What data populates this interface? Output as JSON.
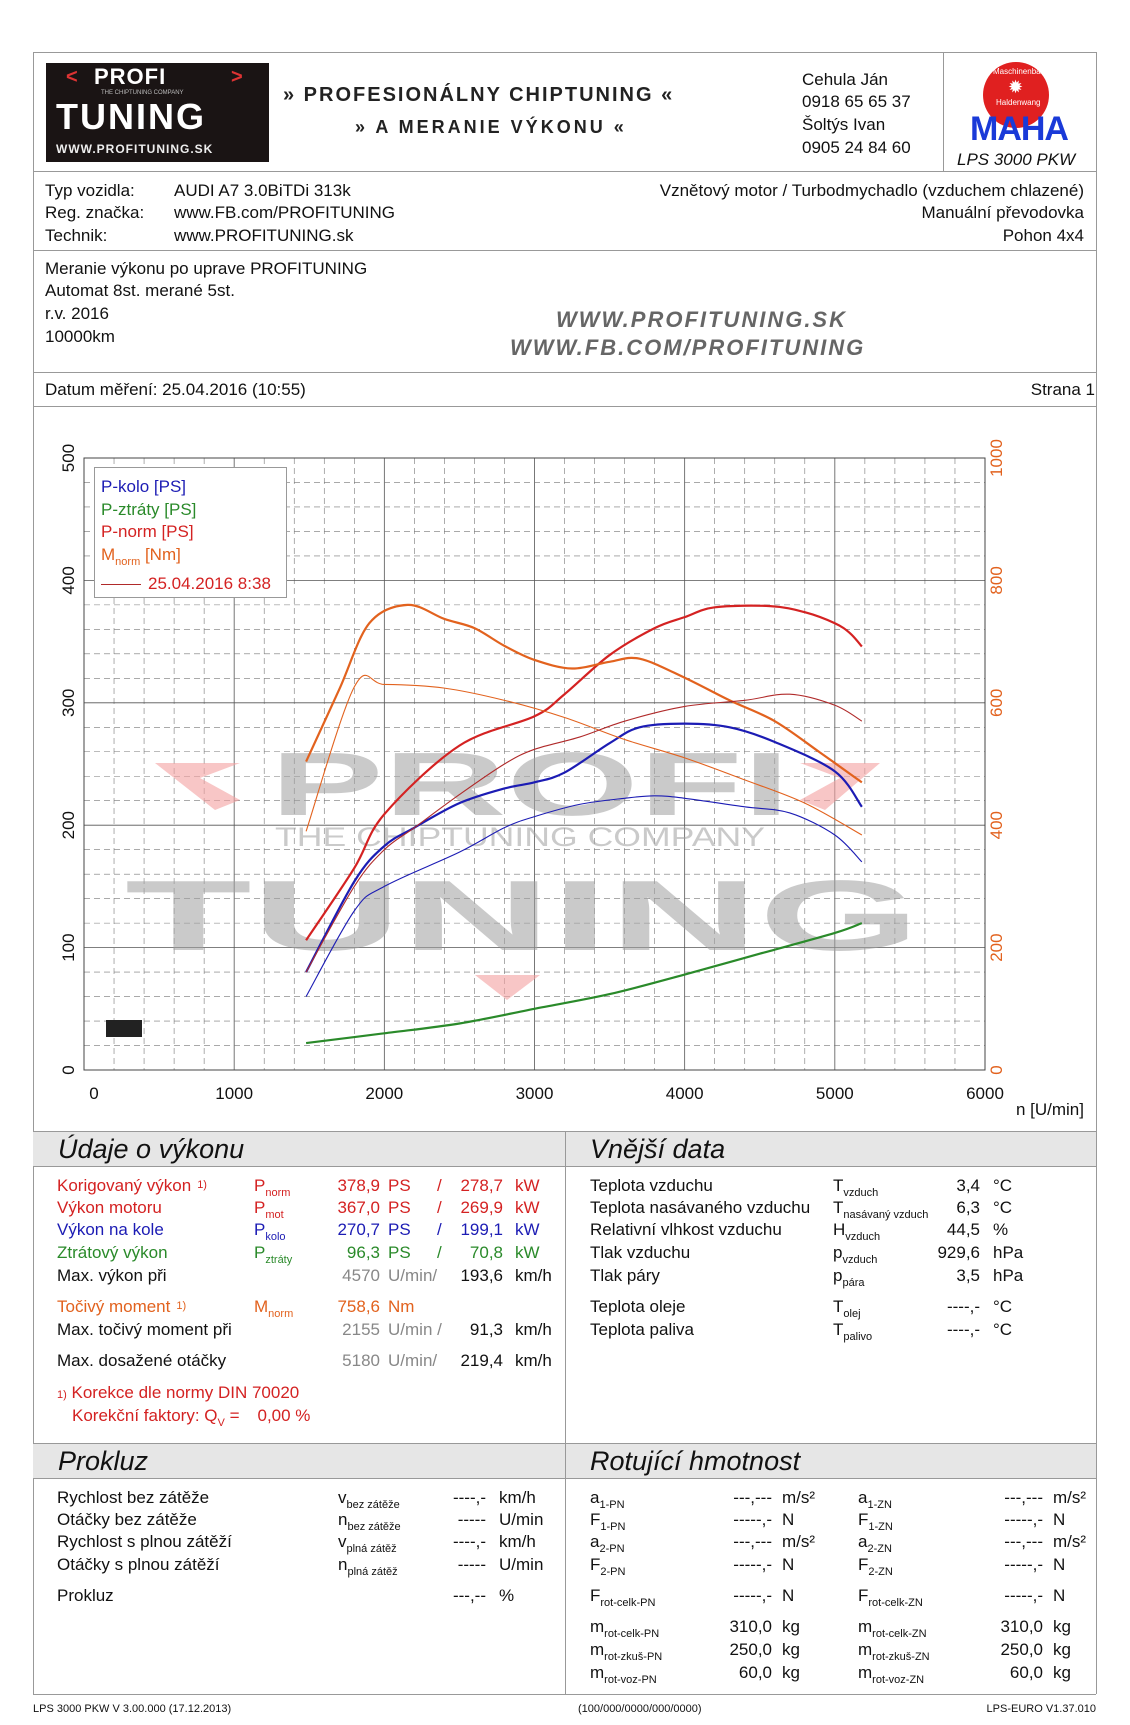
{
  "header": {
    "logo_text": [
      "PROFI",
      "TUNING",
      "THE CHIPTUNING COMPANY",
      "WWW.PROFITUNING.SK"
    ],
    "banner_line1": "» PROFESIONÁLNY CHIPTUNING «",
    "banner_line2": "» A MERANIE VÝKONU «",
    "contacts": [
      "Cehula Ján",
      "0918 65 65 37",
      "Šoltýs Ivan",
      "0905 24 84 60"
    ],
    "maha_logo_text": [
      "Maschinenbau",
      "Haldenwang",
      "MAHA"
    ],
    "device": "LPS 3000 PKW"
  },
  "vehicle": {
    "rows": [
      {
        "label": "Typ vozidla:",
        "value": "AUDI A7 3.0BiTDi 313k",
        "right": "Vznětový motor / Turbodmychadlo (vzduchem chlazené)"
      },
      {
        "label": "Reg. značka:",
        "value": "www.FB.com/PROFITUNING",
        "right": "Manuální převodovka"
      },
      {
        "label": "Technik:",
        "value": "www.PROFITUNING.sk",
        "right": "Pohon 4x4"
      }
    ]
  },
  "notes": {
    "lines": [
      "Meranie výkonu po uprave PROFITUNING",
      "Automat 8st. merané 5st.",
      "r.v. 2016",
      "10000km"
    ],
    "urls": [
      "WWW.PROFITUNING.SK",
      "WWW.FB.COM/PROFITUNING"
    ]
  },
  "date_row": {
    "date": "Datum měření: 25.04.2016 (10:55)",
    "page": "Strana 1"
  },
  "colors": {
    "red": "#d42222",
    "blue": "#1c1cb4",
    "green": "#2a8a2a",
    "orange": "#e2621e",
    "darkred": "#b02a2a",
    "gray": "#888888"
  },
  "chart_data": {
    "type": "line",
    "xlabel": "n [U/min]",
    "xlim": [
      0,
      6000
    ],
    "xticks": [
      "0",
      "1000",
      "2000",
      "3000",
      "4000",
      "5000",
      "6000"
    ],
    "ylim_left": [
      0,
      500
    ],
    "yticks_left": [
      "0",
      "100",
      "200",
      "300",
      "400",
      "500"
    ],
    "ylim_right": [
      0,
      1000
    ],
    "yticks_right": [
      "0",
      "200",
      "400",
      "600",
      "800",
      "1000"
    ],
    "grid": true,
    "legend_position": "top-left",
    "legend": [
      {
        "label": "P-kolo [PS]",
        "color": "blue"
      },
      {
        "label": "P-ztráty [PS]",
        "color": "green"
      },
      {
        "label": "P-norm [PS]",
        "color": "red"
      },
      {
        "label": "M",
        "sub": "norm",
        "suffix": " [Nm]",
        "color": "orange"
      },
      {
        "label": "25.04.2016 8:38",
        "color": "red",
        "line": true
      }
    ],
    "watermark": [
      "PROFI",
      "THE CHIPTUNING COMPANY",
      "TUNING"
    ],
    "series": [
      {
        "name": "P-norm [PS]",
        "color": "red",
        "width": 2.2,
        "axis": "left",
        "x": [
          1479,
          1800,
          2000,
          2500,
          3000,
          3200,
          3500,
          3800,
          4000,
          4200,
          4570,
          4800,
          5000,
          5100,
          5180
        ],
        "y": [
          106,
          165,
          209,
          265,
          289,
          307,
          339,
          361,
          370,
          378,
          379,
          374,
          365,
          357,
          346
        ]
      },
      {
        "name": "P-kolo [PS]",
        "color": "blue",
        "width": 2.2,
        "axis": "left",
        "x": [
          1479,
          1800,
          2000,
          2200,
          2500,
          2800,
          3000,
          3200,
          3500,
          3700,
          4000,
          4300,
          4600,
          5000,
          5180
        ],
        "y": [
          80,
          154,
          183,
          198,
          218,
          230,
          235,
          243,
          267,
          280,
          283,
          280,
          268,
          244,
          215
        ]
      },
      {
        "name": "P-ztráty [PS]",
        "color": "green",
        "width": 2.2,
        "axis": "left",
        "x": [
          1479,
          2000,
          2500,
          3000,
          3500,
          4000,
          4500,
          5000,
          5180
        ],
        "y": [
          22,
          30,
          38,
          50,
          62,
          78,
          95,
          112,
          120
        ]
      },
      {
        "name": "M-norm [Nm]",
        "color": "orange",
        "width": 2.2,
        "axis": "right",
        "x": [
          1479,
          1700,
          1900,
          2155,
          2400,
          2600,
          2800,
          3000,
          3250,
          3500,
          3700,
          4000,
          4300,
          4600,
          4900,
          5180
        ],
        "y": [
          504,
          622,
          730,
          760,
          737,
          722,
          693,
          670,
          656,
          667,
          672,
          641,
          604,
          570,
          519,
          470
        ]
      },
      {
        "name": "M-norm 25.04.2016 8:38 [Nm]",
        "color": "orange",
        "width": 1.1,
        "axis": "right",
        "x": [
          1479,
          1800,
          2000,
          2400,
          2800,
          3200,
          3600,
          4000,
          4400,
          4800,
          5180
        ],
        "y": [
          390,
          626,
          630,
          624,
          604,
          576,
          540,
          510,
          474,
          436,
          384
        ]
      },
      {
        "name": "P-norm 25.04.2016 8:38 [PS]",
        "color": "darkred",
        "width": 1.1,
        "axis": "left",
        "x": [
          1479,
          1800,
          2000,
          2200,
          2500,
          2800,
          3000,
          3300,
          3600,
          4000,
          4400,
          4700,
          5000,
          5180
        ],
        "y": [
          80,
          150,
          180,
          198,
          225,
          250,
          262,
          272,
          285,
          297,
          302,
          307,
          298,
          285
        ]
      },
      {
        "name": "P-kolo 25.04.2016 8:38 [PS]",
        "color": "blue",
        "width": 1.1,
        "axis": "left",
        "x": [
          1479,
          1800,
          2000,
          2500,
          2800,
          3000,
          3300,
          3600,
          3800,
          4000,
          4400,
          4700,
          5000,
          5180
        ],
        "y": [
          60,
          130,
          150,
          178,
          198,
          207,
          217,
          222,
          224,
          222,
          215,
          210,
          192,
          170
        ]
      }
    ]
  },
  "performance": {
    "title": "Údaje o výkonu",
    "rows": [
      {
        "label": "Korigovaný výkon",
        "fn": "1)",
        "sym": "P",
        "sub": "norm",
        "v1": "378,9",
        "u1": "PS",
        "sep": "/",
        "v2": "278,7",
        "u2": "kW",
        "color": "red"
      },
      {
        "label": "Výkon motoru",
        "sym": "P",
        "sub": "mot",
        "v1": "367,0",
        "u1": "PS",
        "sep": "/",
        "v2": "269,9",
        "u2": "kW",
        "color": "red"
      },
      {
        "label": "Výkon na kole",
        "sym": "P",
        "sub": "kolo",
        "v1": "270,7",
        "u1": "PS",
        "sep": "/",
        "v2": "199,1",
        "u2": "kW",
        "color": "blue"
      },
      {
        "label": "Ztrátový výkon",
        "sym": "P",
        "sub": "ztráty",
        "v1": "96,3",
        "u1": "PS",
        "sep": "/",
        "v2": "70,8",
        "u2": "kW",
        "color": "green"
      },
      {
        "label": "Max. výkon při",
        "v1": "4570",
        "u1": "U/min/",
        "v2": "193,6",
        "u2": "km/h",
        "color": "black"
      },
      {
        "label": "Točivý moment",
        "fn": "1)",
        "sym": "M",
        "sub": "norm",
        "v1": "758,6",
        "u1": "Nm",
        "color": "orange"
      },
      {
        "label": "Max. točivý moment při",
        "v1": "2155",
        "u1": "U/min /",
        "v2": "91,3",
        "u2": "km/h",
        "color": "black"
      },
      {
        "label": "Max. dosažené otáčky",
        "v1": "5180",
        "u1": "U/min/",
        "v2": "219,4",
        "u2": "km/h",
        "color": "black"
      }
    ],
    "footnote_mark": "1)",
    "footnote": "Korekce dle normy DIN 70020",
    "factor_label": "Korekční faktory: Q",
    "factor_sub": "V",
    "factor_eq": " =",
    "factor_value": "0,00 %"
  },
  "external": {
    "title": "Vnější data",
    "rows": [
      {
        "label": "Teplota vzduchu",
        "sym": "T",
        "sub": "vzduch",
        "value": "3,4",
        "unit": "°C"
      },
      {
        "label": "Teplota nasávaného vzduchu",
        "sym": "T",
        "sub": "nasávaný vzduch",
        "value": "6,3",
        "unit": "°C"
      },
      {
        "label": "Relativní vlhkost vzduchu",
        "sym": "H",
        "sub": "vzduch",
        "value": "44,5",
        "unit": "%"
      },
      {
        "label": "Tlak vzduchu",
        "sym": "p",
        "sub": "vzduch",
        "value": "929,6",
        "unit": "hPa"
      },
      {
        "label": "Tlak páry",
        "sym": "p",
        "sub": "pára",
        "value": "3,5",
        "unit": "hPa"
      },
      {
        "label": "Teplota oleje",
        "sym": "T",
        "sub": "olej",
        "value": "----,-",
        "unit": "°C"
      },
      {
        "label": "Teplota paliva",
        "sym": "T",
        "sub": "palivo",
        "value": "----,-",
        "unit": "°C"
      }
    ]
  },
  "slip": {
    "title": "Prokluz",
    "rows": [
      {
        "label": "Rychlost bez zátěže",
        "sym": "v",
        "sub": "bez zátěže",
        "value": "----,-",
        "unit": "km/h"
      },
      {
        "label": "Otáčky bez zátěže",
        "sym": "n",
        "sub": "bez zátěže",
        "value": "-----",
        "unit": "U/min"
      },
      {
        "label": "Rychlost s plnou zátěží",
        "sym": "v",
        "sub": "plná zátěž",
        "value": "----,-",
        "unit": "km/h"
      },
      {
        "label": "Otáčky s plnou zátěží",
        "sym": "n",
        "sub": "plná zátěž",
        "value": "-----",
        "unit": "U/min"
      },
      {
        "label": "Prokluz",
        "sym": "",
        "sub": "",
        "value": "---,--",
        "unit": "%"
      }
    ]
  },
  "rotating": {
    "title": "Rotující hmotnost",
    "rows": [
      [
        {
          "sym": "a",
          "sub": "1-PN",
          "value": "---,---",
          "unit": "m/s²"
        },
        {
          "sym": "a",
          "sub": "1-ZN",
          "value": "---,---",
          "unit": "m/s²"
        }
      ],
      [
        {
          "sym": "F",
          "sub": "1-PN",
          "value": "-----,-",
          "unit": "N"
        },
        {
          "sym": "F",
          "sub": "1-ZN",
          "value": "-----,-",
          "unit": "N"
        }
      ],
      [
        {
          "sym": "a",
          "sub": "2-PN",
          "value": "---,---",
          "unit": "m/s²"
        },
        {
          "sym": "a",
          "sub": "2-ZN",
          "value": "---,---",
          "unit": "m/s²"
        }
      ],
      [
        {
          "sym": "F",
          "sub": "2-PN",
          "value": "-----,-",
          "unit": "N"
        },
        {
          "sym": "F",
          "sub": "2-ZN",
          "value": "-----,-",
          "unit": "N"
        }
      ],
      [
        {
          "sym": "F",
          "sub": "rot-celk-PN",
          "value": "-----,-",
          "unit": "N"
        },
        {
          "sym": "F",
          "sub": "rot-celk-ZN",
          "value": "-----,-",
          "unit": "N"
        }
      ],
      [
        {
          "sym": "m",
          "sub": "rot-celk-PN",
          "value": "310,0",
          "unit": "kg"
        },
        {
          "sym": "m",
          "sub": "rot-celk-ZN",
          "value": "310,0",
          "unit": "kg"
        }
      ],
      [
        {
          "sym": "m",
          "sub": "rot-zkuš-PN",
          "value": "250,0",
          "unit": "kg"
        },
        {
          "sym": "m",
          "sub": "rot-zkuš-ZN",
          "value": "250,0",
          "unit": "kg"
        }
      ],
      [
        {
          "sym": "m",
          "sub": "rot-voz-PN",
          "value": "60,0",
          "unit": "kg"
        },
        {
          "sym": "m",
          "sub": "rot-voz-ZN",
          "value": "60,0",
          "unit": "kg"
        }
      ]
    ]
  },
  "footer": {
    "left": "LPS 3000 PKW V 3.00.000 (17.12.2013)",
    "center": "(100/000/0000/000/0000)",
    "right": "LPS-EURO V1.37.010"
  }
}
